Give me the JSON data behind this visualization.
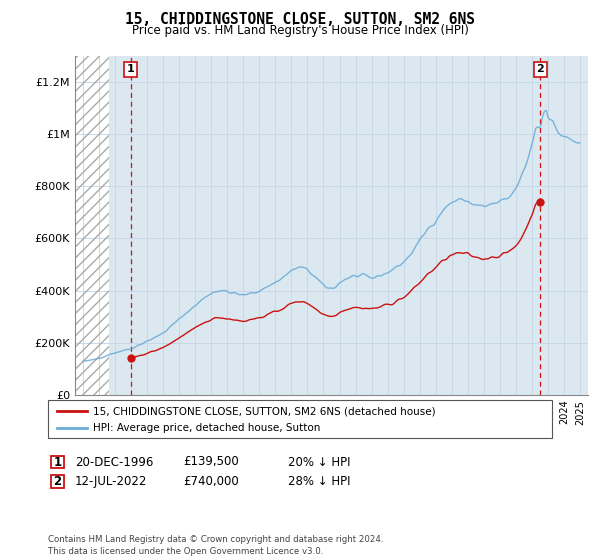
{
  "title": "15, CHIDDINGSTONE CLOSE, SUTTON, SM2 6NS",
  "subtitle": "Price paid vs. HM Land Registry's House Price Index (HPI)",
  "ylim": [
    0,
    1300000
  ],
  "yticks": [
    0,
    200000,
    400000,
    600000,
    800000,
    1000000,
    1200000
  ],
  "ytick_labels": [
    "£0",
    "£200K",
    "£400K",
    "£600K",
    "£800K",
    "£1M",
    "£1.2M"
  ],
  "legend_line1": "15, CHIDDINGSTONE CLOSE, SUTTON, SM2 6NS (detached house)",
  "legend_line2": "HPI: Average price, detached house, Sutton",
  "note1_label": "1",
  "note1_date": "20-DEC-1996",
  "note1_price": "£139,500",
  "note1_hpi": "20% ↓ HPI",
  "note2_label": "2",
  "note2_date": "12-JUL-2022",
  "note2_price": "£740,000",
  "note2_hpi": "28% ↓ HPI",
  "footer": "Contains HM Land Registry data © Crown copyright and database right 2024.\nThis data is licensed under the Open Government Licence v3.0.",
  "sale1_year": 1996.97,
  "sale1_value": 139500,
  "sale2_year": 2022.53,
  "sale2_value": 740000,
  "hpi_color": "#6baed6",
  "price_color": "#cc1111",
  "dashed_color": "#cc1111",
  "grid_color": "#c8d8e8",
  "bg_color": "#dce8f0",
  "plot_bg": "#dce8f0"
}
